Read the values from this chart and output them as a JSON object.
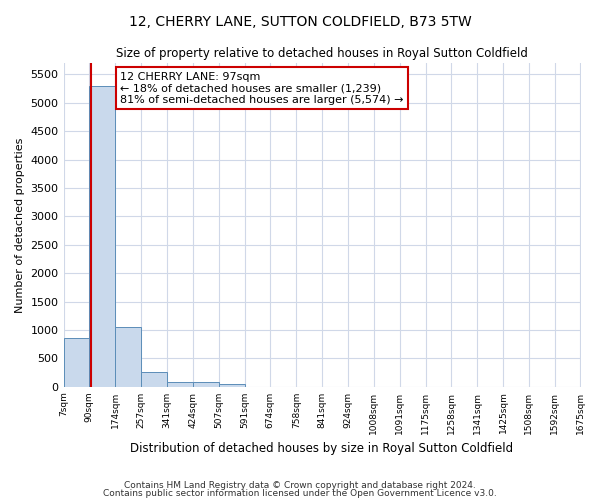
{
  "title": "12, CHERRY LANE, SUTTON COLDFIELD, B73 5TW",
  "subtitle": "Size of property relative to detached houses in Royal Sutton Coldfield",
  "xlabel": "Distribution of detached houses by size in Royal Sutton Coldfield",
  "ylabel": "Number of detached properties",
  "footnote1": "Contains HM Land Registry data © Crown copyright and database right 2024.",
  "footnote2": "Contains public sector information licensed under the Open Government Licence v3.0.",
  "bar_edges": [
    7,
    90,
    174,
    257,
    341,
    424,
    507,
    591,
    674,
    758,
    841,
    924,
    1008,
    1091,
    1175,
    1258,
    1341,
    1425,
    1508,
    1592,
    1675
  ],
  "bar_heights": [
    850,
    5300,
    1050,
    250,
    80,
    80,
    50,
    0,
    0,
    0,
    0,
    0,
    0,
    0,
    0,
    0,
    0,
    0,
    0,
    0
  ],
  "bar_color": "#c9d9ec",
  "bar_edge_color": "#5b8db8",
  "property_line_x": 97,
  "property_line_color": "#cc0000",
  "annotation_text": "12 CHERRY LANE: 97sqm\n← 18% of detached houses are smaller (1,239)\n81% of semi-detached houses are larger (5,574) →",
  "annotation_box_color": "#ffffff",
  "annotation_box_edge_color": "#cc0000",
  "ylim": [
    0,
    5700
  ],
  "yticks": [
    0,
    500,
    1000,
    1500,
    2000,
    2500,
    3000,
    3500,
    4000,
    4500,
    5000,
    5500
  ],
  "bg_color": "#ffffff",
  "grid_color": "#d0d8e8",
  "tick_labels": [
    "7sqm",
    "90sqm",
    "174sqm",
    "257sqm",
    "341sqm",
    "424sqm",
    "507sqm",
    "591sqm",
    "674sqm",
    "758sqm",
    "841sqm",
    "924sqm",
    "1008sqm",
    "1091sqm",
    "1175sqm",
    "1258sqm",
    "1341sqm",
    "1425sqm",
    "1508sqm",
    "1592sqm",
    "1675sqm"
  ]
}
